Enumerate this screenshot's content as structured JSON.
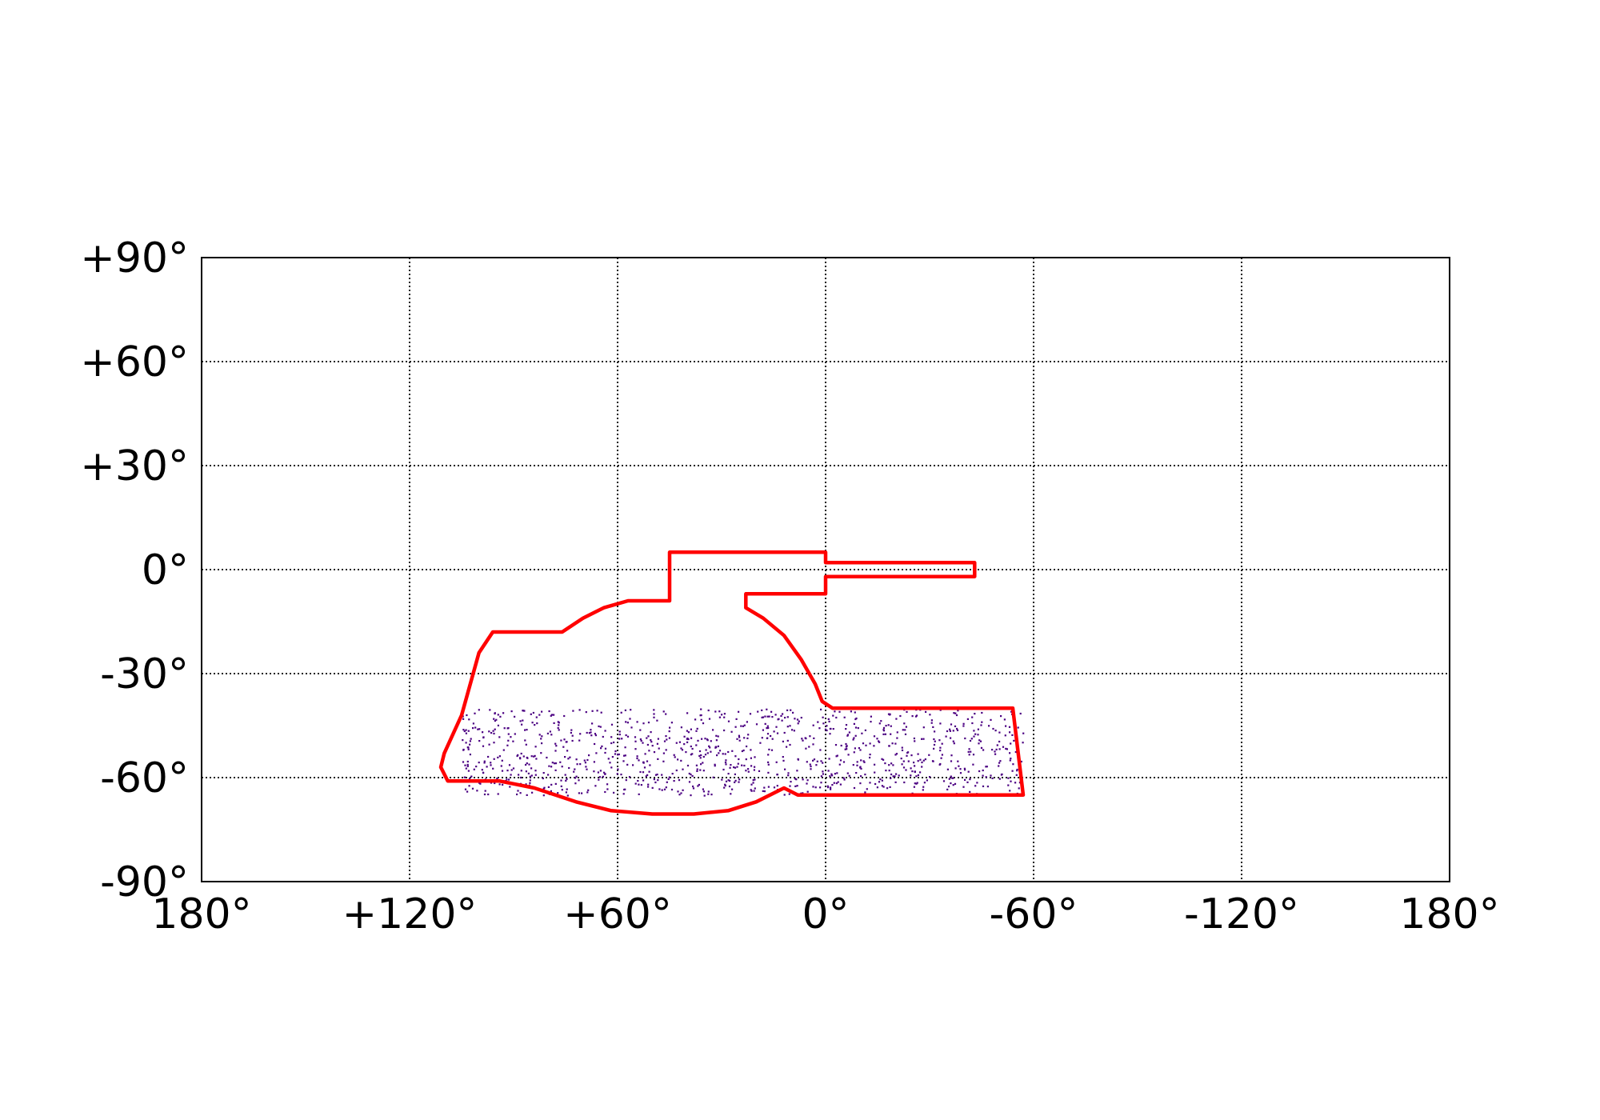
{
  "chart_data": {
    "type": "scatter",
    "title": "",
    "xlabel": "",
    "ylabel": "",
    "xlim": [
      180,
      -180
    ],
    "ylim": [
      -90,
      90
    ],
    "grid": true,
    "legend": "none",
    "x_ticks": [
      {
        "value": 180,
        "label": "180°"
      },
      {
        "value": 120,
        "label": "+120°"
      },
      {
        "value": 60,
        "label": "+60°"
      },
      {
        "value": 0,
        "label": "0°"
      },
      {
        "value": -60,
        "label": "-60°"
      },
      {
        "value": -120,
        "label": "-120°"
      },
      {
        "value": -180,
        "label": "180°"
      }
    ],
    "y_ticks": [
      {
        "value": 90,
        "label": "+90°"
      },
      {
        "value": 60,
        "label": "+60°"
      },
      {
        "value": 30,
        "label": "+30°"
      },
      {
        "value": 0,
        "label": "0°"
      },
      {
        "value": -30,
        "label": "-30°"
      },
      {
        "value": -60,
        "label": "-60°"
      },
      {
        "value": -90,
        "label": "-90°"
      }
    ],
    "colors": {
      "footprint": "#ff0000",
      "points": "#4b0082",
      "grid": "#000000"
    },
    "series": [
      {
        "type": "line",
        "closed": true,
        "points": [
          [
            45,
            5
          ],
          [
            0,
            5
          ],
          [
            0,
            2
          ],
          [
            -43,
            2
          ],
          [
            -43,
            -2
          ],
          [
            0,
            -2
          ],
          [
            0,
            -7
          ],
          [
            23,
            -7
          ],
          [
            23,
            -11
          ],
          [
            18,
            -14
          ],
          [
            12,
            -19
          ],
          [
            7,
            -26
          ],
          [
            3,
            -33
          ],
          [
            1,
            -38
          ],
          [
            -2,
            -40
          ],
          [
            -54,
            -40
          ],
          [
            -57,
            -65
          ],
          [
            8,
            -65
          ],
          [
            12,
            -63
          ],
          [
            20,
            -67
          ],
          [
            28,
            -69.5
          ],
          [
            38,
            -70.5
          ],
          [
            50,
            -70.5
          ],
          [
            62,
            -69.5
          ],
          [
            72,
            -67
          ],
          [
            84,
            -63
          ],
          [
            94,
            -61
          ],
          [
            95,
            -61
          ],
          [
            100,
            -61
          ],
          [
            109,
            -61
          ],
          [
            111,
            -57
          ],
          [
            110,
            -53
          ],
          [
            105,
            -42
          ],
          [
            100,
            -24
          ],
          [
            96,
            -18
          ],
          [
            76,
            -18
          ],
          [
            70,
            -14
          ],
          [
            64,
            -11
          ],
          [
            57,
            -9
          ],
          [
            45,
            -9
          ]
        ]
      },
      {
        "type": "scatter",
        "region": {
          "lon": [
            -57,
            105
          ],
          "lat": [
            -65,
            -40
          ]
        },
        "count": 1100
      }
    ]
  }
}
